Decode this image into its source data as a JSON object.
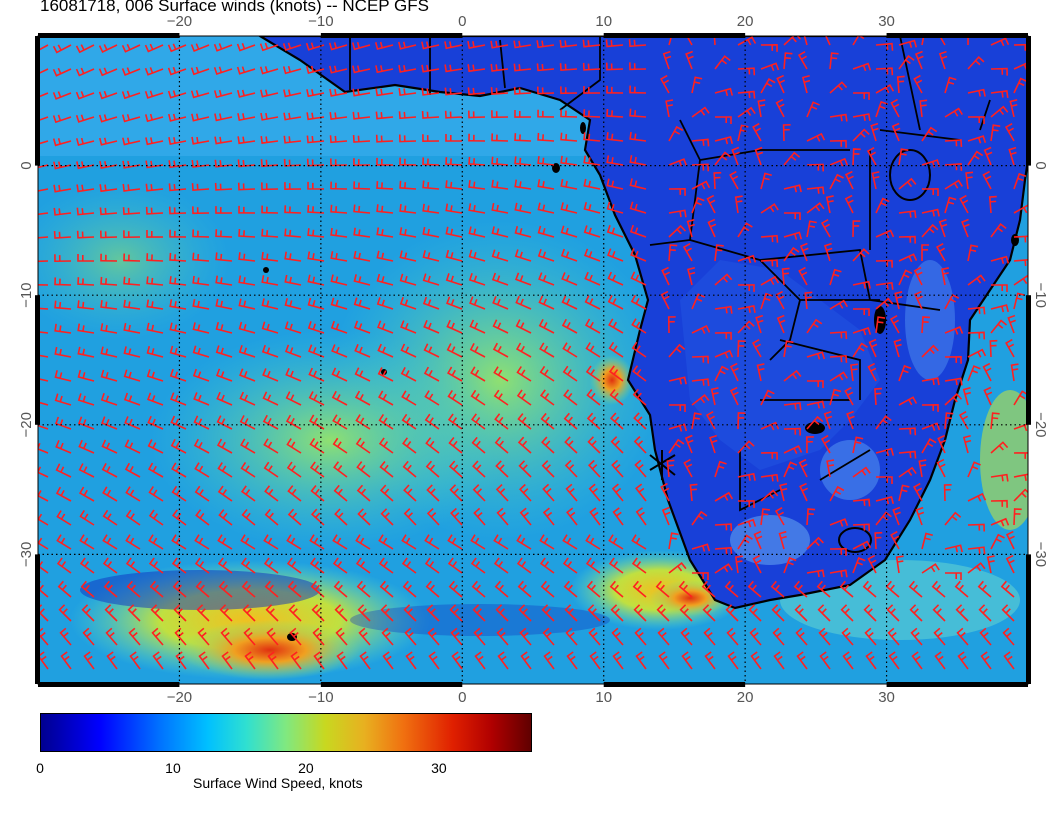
{
  "title": "16081718, 006 Surface winds (knots) -- NCEP GFS",
  "map": {
    "lon_range": [
      -30,
      40
    ],
    "lat_range": [
      -40,
      10
    ],
    "lon_ticks": [
      "−20",
      "−10",
      "0",
      "10",
      "20",
      "30"
    ],
    "lat_ticks": [
      "0",
      "−10",
      "−20",
      "−30"
    ],
    "barb_color": "#ff2020",
    "coast_color": "#000000"
  },
  "colorbar": {
    "label": "Surface Wind Speed, knots",
    "ticks": [
      "0",
      "10",
      "20",
      "30"
    ],
    "range": [
      0,
      37
    ]
  }
}
